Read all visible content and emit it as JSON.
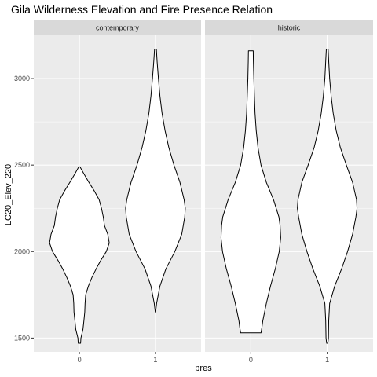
{
  "chart_data": {
    "type": "violin",
    "title": "Gila Wilderness Elevation and Fire Presence Relation",
    "xlabel": "pres",
    "ylabel": "LC20_Elev_220",
    "categories": [
      "0",
      "1"
    ],
    "ylim": [
      1420,
      3250
    ],
    "y_ticks": [
      1500,
      2000,
      2500,
      3000
    ],
    "grid": true,
    "panel_background": "#ebebeb",
    "strip_background": "#d9d9d9",
    "grid_color": "#ffffff",
    "violin_fill": "#ffffff",
    "violin_stroke": "#000000",
    "facets": [
      {
        "label": "contemporary",
        "violins": [
          {
            "category": "0",
            "min": 1470,
            "max": 2490,
            "profile": [
              [
                1470,
                0.04
              ],
              [
                1500,
                0.05
              ],
              [
                1550,
                0.12
              ],
              [
                1600,
                0.15
              ],
              [
                1650,
                0.18
              ],
              [
                1700,
                0.19
              ],
              [
                1750,
                0.21
              ],
              [
                1800,
                0.3
              ],
              [
                1850,
                0.42
              ],
              [
                1900,
                0.56
              ],
              [
                1950,
                0.72
              ],
              [
                2000,
                0.9
              ],
              [
                2050,
                1.0
              ],
              [
                2100,
                0.95
              ],
              [
                2150,
                0.84
              ],
              [
                2200,
                0.8
              ],
              [
                2250,
                0.74
              ],
              [
                2300,
                0.66
              ],
              [
                2350,
                0.5
              ],
              [
                2400,
                0.32
              ],
              [
                2450,
                0.15
              ],
              [
                2490,
                0.02
              ]
            ]
          },
          {
            "category": "1",
            "min": 1650,
            "max": 3170,
            "profile": [
              [
                1650,
                0.005
              ],
              [
                1700,
                0.04
              ],
              [
                1800,
                0.15
              ],
              [
                1900,
                0.35
              ],
              [
                2000,
                0.65
              ],
              [
                2100,
                0.88
              ],
              [
                2200,
                0.98
              ],
              [
                2250,
                1.0
              ],
              [
                2300,
                0.96
              ],
              [
                2400,
                0.82
              ],
              [
                2500,
                0.62
              ],
              [
                2600,
                0.45
              ],
              [
                2700,
                0.32
              ],
              [
                2800,
                0.22
              ],
              [
                2900,
                0.15
              ],
              [
                3000,
                0.1
              ],
              [
                3100,
                0.055
              ],
              [
                3170,
                0.03
              ]
            ]
          }
        ]
      },
      {
        "label": "historic",
        "violins": [
          {
            "category": "0",
            "min": 1530,
            "max": 3160,
            "profile": [
              [
                1530,
                0.34
              ],
              [
                1560,
                0.37
              ],
              [
                1600,
                0.4
              ],
              [
                1700,
                0.52
              ],
              [
                1800,
                0.66
              ],
              [
                1900,
                0.82
              ],
              [
                2000,
                0.95
              ],
              [
                2080,
                1.0
              ],
              [
                2150,
                0.98
              ],
              [
                2200,
                0.94
              ],
              [
                2300,
                0.76
              ],
              [
                2400,
                0.52
              ],
              [
                2500,
                0.34
              ],
              [
                2600,
                0.24
              ],
              [
                2700,
                0.18
              ],
              [
                2800,
                0.14
              ],
              [
                2900,
                0.12
              ],
              [
                3000,
                0.1
              ],
              [
                3100,
                0.085
              ],
              [
                3160,
                0.08
              ]
            ]
          },
          {
            "category": "1",
            "min": 1470,
            "max": 3170,
            "profile": [
              [
                1470,
                0.02
              ],
              [
                1500,
                0.04
              ],
              [
                1600,
                0.05
              ],
              [
                1700,
                0.08
              ],
              [
                1800,
                0.25
              ],
              [
                1900,
                0.48
              ],
              [
                2000,
                0.68
              ],
              [
                2100,
                0.85
              ],
              [
                2200,
                0.96
              ],
              [
                2250,
                1.0
              ],
              [
                2300,
                0.98
              ],
              [
                2400,
                0.85
              ],
              [
                2500,
                0.64
              ],
              [
                2600,
                0.44
              ],
              [
                2700,
                0.3
              ],
              [
                2800,
                0.2
              ],
              [
                2900,
                0.13
              ],
              [
                3000,
                0.08
              ],
              [
                3100,
                0.05
              ],
              [
                3170,
                0.03
              ]
            ]
          }
        ]
      }
    ]
  }
}
